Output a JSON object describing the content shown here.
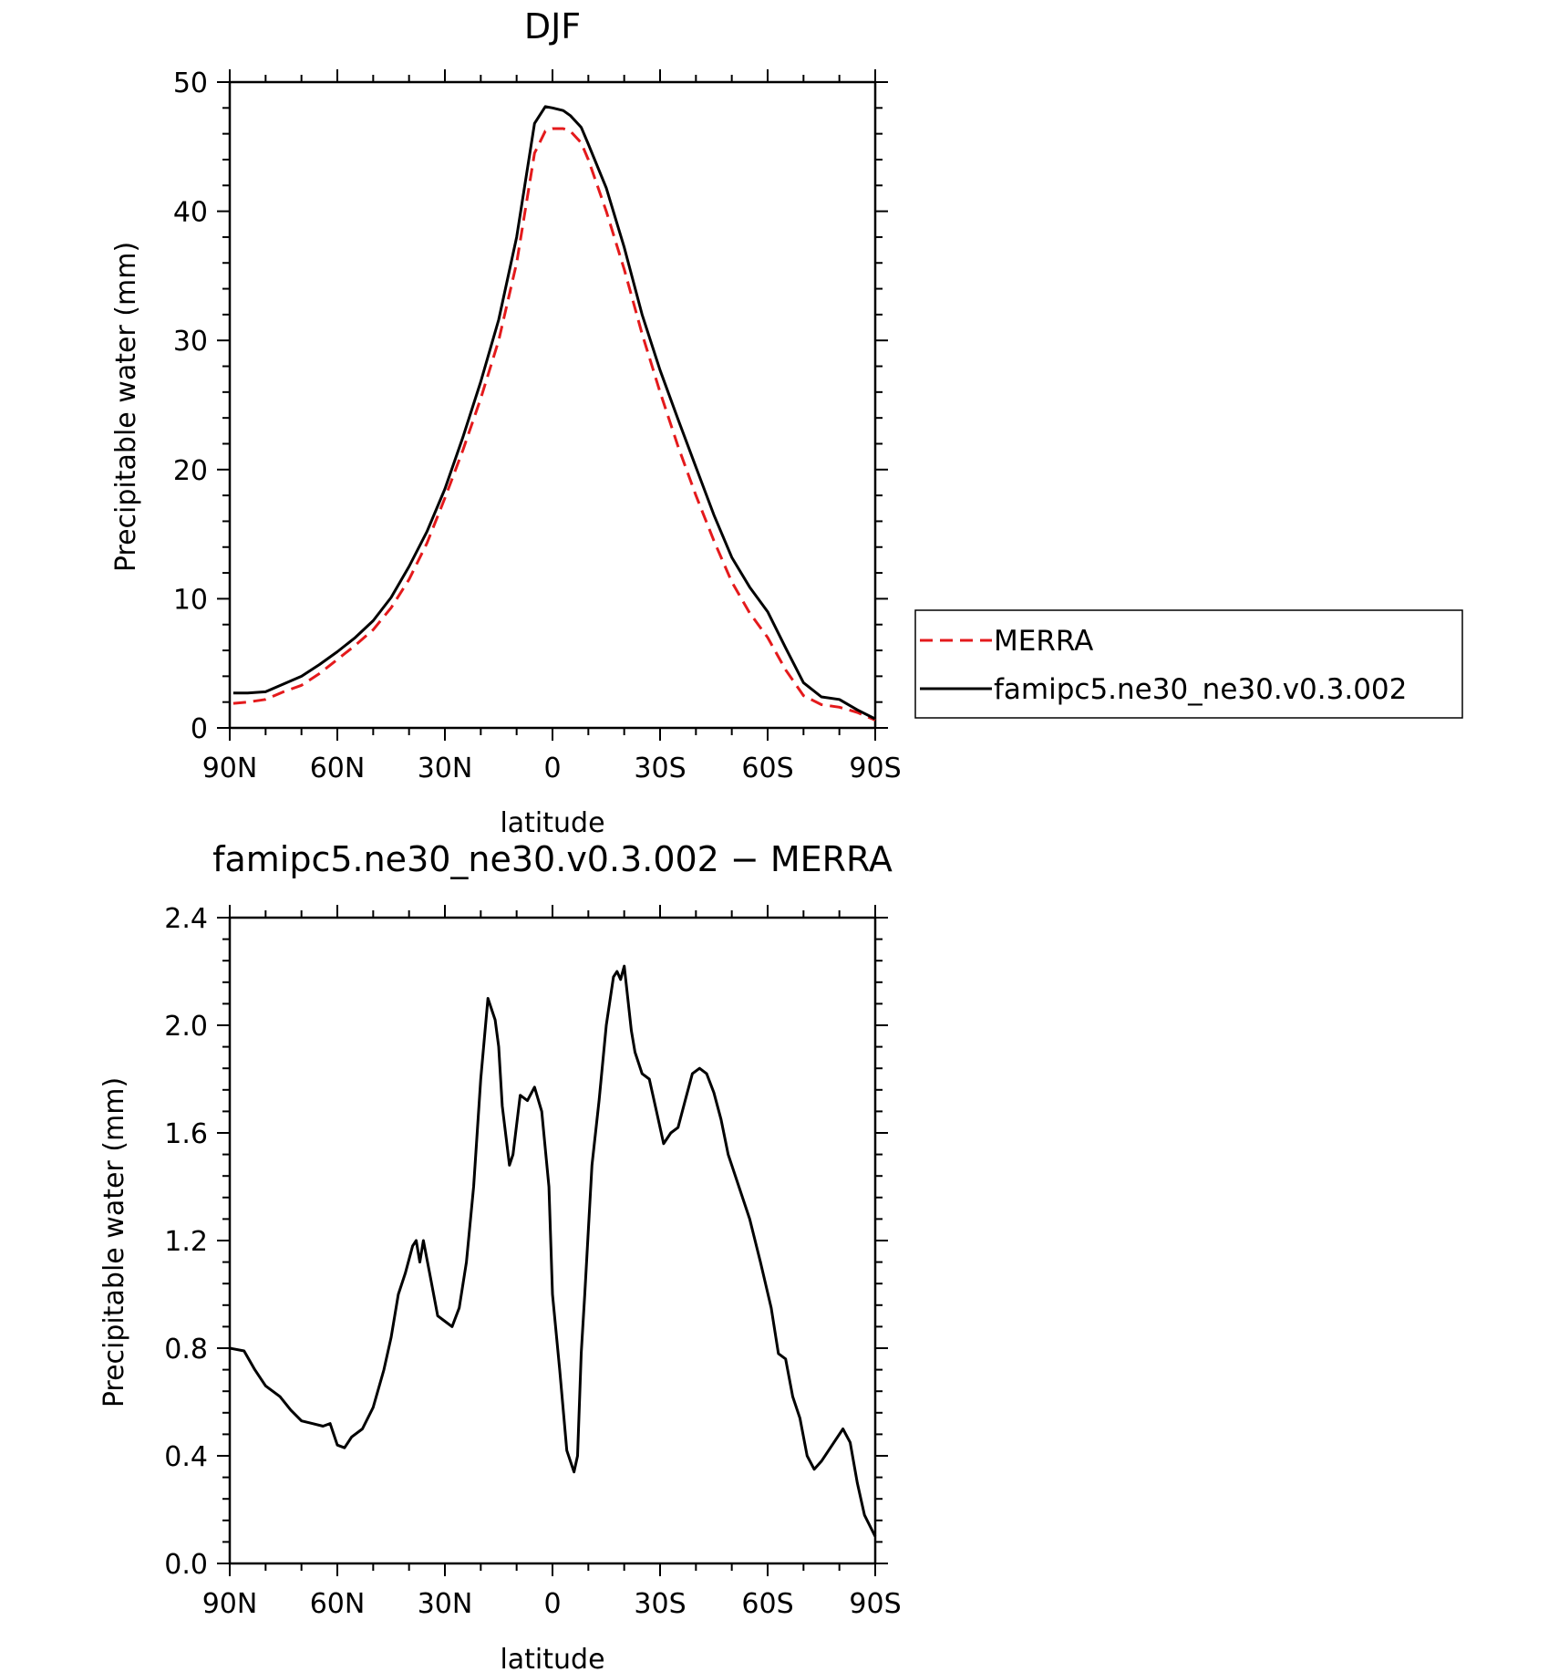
{
  "chart_data": [
    {
      "type": "line",
      "title": "DJF",
      "xlabel": "latitude",
      "ylabel": "Precipitable water (mm)",
      "xlim": [
        90,
        -90
      ],
      "ylim": [
        0,
        50
      ],
      "xticks": [
        90,
        60,
        30,
        0,
        -30,
        -60,
        -90
      ],
      "xtick_labels": [
        "90N",
        "60N",
        "30N",
        "0",
        "30S",
        "60S",
        "90S"
      ],
      "yticks": [
        0,
        10,
        20,
        30,
        40,
        50
      ],
      "ytick_labels": [
        "0",
        "10",
        "20",
        "30",
        "40",
        "50"
      ],
      "legend_position": "right",
      "series": [
        {
          "name": "MERRA",
          "color": "#e41a1c",
          "dash": "dashed",
          "x": [
            89,
            85,
            80,
            75,
            70,
            65,
            60,
            55,
            50,
            45,
            40,
            35,
            30,
            25,
            20,
            15,
            10,
            5,
            2,
            0,
            -3,
            -5,
            -8,
            -10,
            -15,
            -20,
            -25,
            -30,
            -35,
            -40,
            -45,
            -50,
            -55,
            -60,
            -65,
            -70,
            -75,
            -80,
            -85,
            -90
          ],
          "y": [
            1.9,
            2.0,
            2.2,
            2.8,
            3.3,
            4.2,
            5.3,
            6.4,
            7.6,
            9.3,
            11.5,
            14.3,
            17.8,
            21.5,
            25.5,
            30.0,
            36.0,
            44.5,
            46.2,
            46.4,
            46.4,
            46.2,
            45.3,
            44.0,
            40.0,
            35.5,
            30.5,
            26.0,
            21.8,
            18.0,
            14.5,
            11.3,
            8.9,
            7.0,
            4.5,
            2.5,
            1.8,
            1.6,
            1.2,
            0.6
          ]
        },
        {
          "name": "famipc5.ne30_ne30.v0.3.002",
          "color": "#000000",
          "dash": "solid",
          "x": [
            89,
            85,
            80,
            75,
            70,
            65,
            60,
            55,
            50,
            45,
            40,
            35,
            30,
            25,
            20,
            15,
            10,
            5,
            2,
            0,
            -3,
            -5,
            -8,
            -10,
            -15,
            -20,
            -25,
            -30,
            -35,
            -40,
            -45,
            -50,
            -55,
            -60,
            -65,
            -70,
            -75,
            -80,
            -85,
            -90
          ],
          "y": [
            2.7,
            2.7,
            2.8,
            3.4,
            4.0,
            4.9,
            5.9,
            7.0,
            8.3,
            10.1,
            12.5,
            15.2,
            18.5,
            22.5,
            26.8,
            31.6,
            38.0,
            46.8,
            48.1,
            48.0,
            47.8,
            47.4,
            46.5,
            45.2,
            41.8,
            37.2,
            32.0,
            27.7,
            23.9,
            20.2,
            16.5,
            13.2,
            10.9,
            9.0,
            6.2,
            3.5,
            2.4,
            2.2,
            1.4,
            0.7
          ]
        }
      ]
    },
    {
      "type": "line",
      "title": "famipc5.ne30_ne30.v0.3.002 − MERRA",
      "xlabel": "latitude",
      "ylabel": "Precipitable water (mm)",
      "xlim": [
        90,
        -90
      ],
      "ylim": [
        0,
        2.4
      ],
      "xticks": [
        90,
        60,
        30,
        0,
        -30,
        -60,
        -90
      ],
      "xtick_labels": [
        "90N",
        "60N",
        "30N",
        "0",
        "30S",
        "60S",
        "90S"
      ],
      "yticks": [
        0,
        0.4,
        0.8,
        1.2,
        1.6,
        2.0,
        2.4
      ],
      "ytick_labels": [
        "0.0",
        "0.4",
        "0.8",
        "1.2",
        "1.6",
        "2.0",
        "2.4"
      ],
      "series": [
        {
          "color": "#000000",
          "dash": "solid",
          "x": [
            90,
            86,
            83,
            80,
            76,
            73,
            70,
            67,
            64,
            62,
            60,
            58,
            56,
            53,
            50,
            47,
            45,
            43,
            41,
            39,
            38,
            37,
            36,
            34,
            32,
            30,
            28,
            26,
            24,
            22,
            20,
            18,
            16,
            15,
            14,
            12,
            11,
            9,
            7,
            5,
            3,
            1,
            0,
            -2,
            -4,
            -6,
            -7,
            -8,
            -9,
            -11,
            -13,
            -15,
            -17,
            -18,
            -19,
            -20,
            -21,
            -22,
            -23,
            -25,
            -27,
            -29,
            -31,
            -33,
            -35,
            -37,
            -39,
            -41,
            -43,
            -45,
            -47,
            -49,
            -52,
            -55,
            -58,
            -61,
            -63,
            -65,
            -67,
            -69,
            -71,
            -73,
            -75,
            -77,
            -79,
            -81,
            -83,
            -85,
            -87,
            -90
          ],
          "y": [
            0.8,
            0.79,
            0.72,
            0.66,
            0.62,
            0.57,
            0.53,
            0.52,
            0.51,
            0.52,
            0.44,
            0.43,
            0.47,
            0.5,
            0.58,
            0.72,
            0.84,
            1.0,
            1.08,
            1.18,
            1.2,
            1.12,
            1.2,
            1.06,
            0.92,
            0.9,
            0.88,
            0.95,
            1.12,
            1.4,
            1.8,
            2.1,
            2.02,
            1.92,
            1.7,
            1.48,
            1.52,
            1.74,
            1.72,
            1.77,
            1.68,
            1.4,
            1.0,
            0.72,
            0.42,
            0.34,
            0.4,
            0.78,
            1.0,
            1.48,
            1.72,
            2.0,
            2.18,
            2.2,
            2.17,
            2.22,
            2.1,
            1.98,
            1.9,
            1.82,
            1.8,
            1.68,
            1.56,
            1.6,
            1.62,
            1.72,
            1.82,
            1.84,
            1.82,
            1.75,
            1.65,
            1.52,
            1.4,
            1.28,
            1.12,
            0.95,
            0.78,
            0.76,
            0.62,
            0.54,
            0.4,
            0.35,
            0.38,
            0.42,
            0.46,
            0.5,
            0.45,
            0.3,
            0.18,
            0.1
          ]
        }
      ]
    }
  ],
  "legend": {
    "entries": [
      {
        "label": "MERRA",
        "color": "#e41a1c",
        "dash": "dashed"
      },
      {
        "label": "famipc5.ne30_ne30.v0.3.002",
        "color": "#000000",
        "dash": "solid"
      }
    ]
  }
}
